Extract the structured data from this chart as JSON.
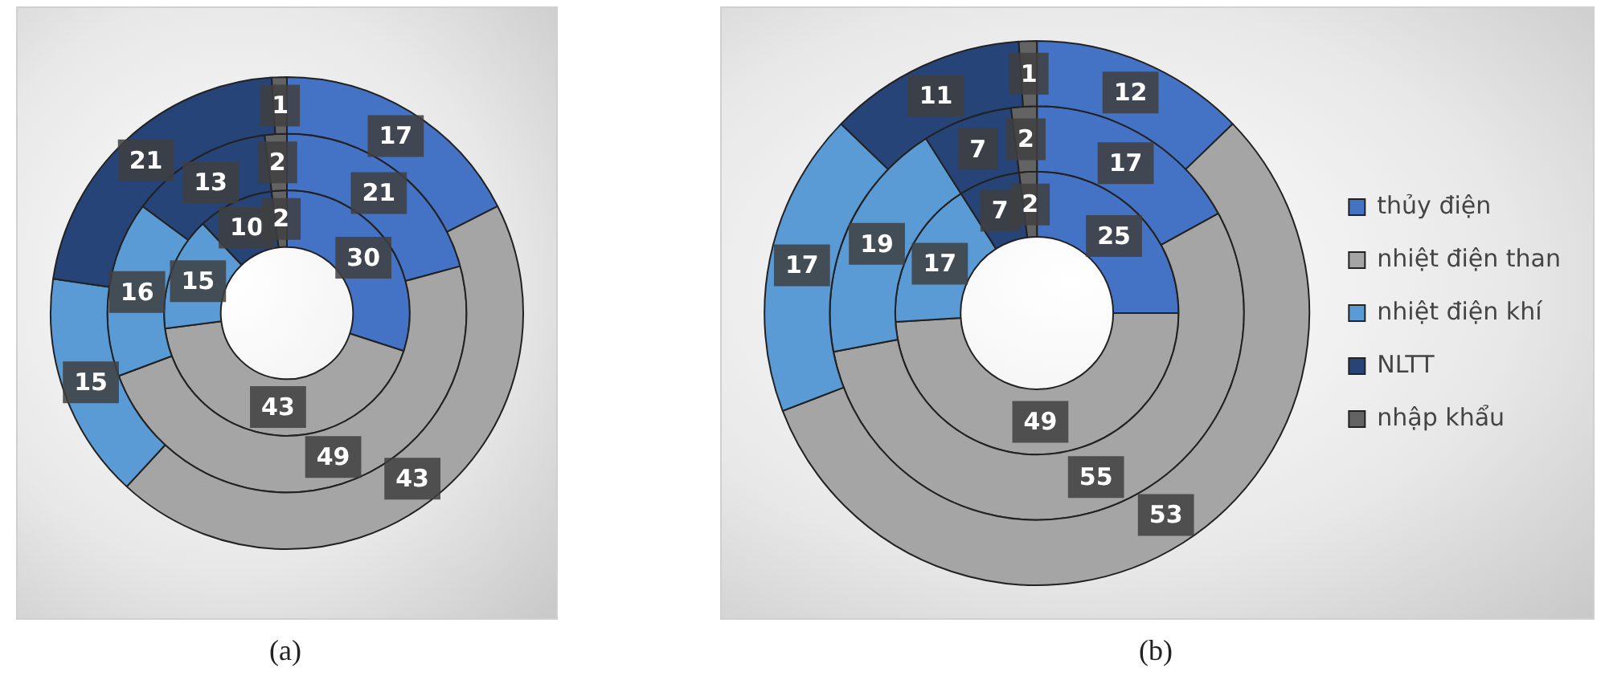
{
  "chart_data": [
    {
      "type": "donut",
      "categories": [
        null,
        null,
        null,
        null,
        null
      ],
      "colors": [
        "#4472c4",
        "#a5a5a5",
        "#5b9bd5",
        "#264478",
        "#636363"
      ],
      "series": [
        {
          "values": [
            17,
            43,
            15,
            21,
            1
          ]
        },
        {
          "values": [
            21,
            49,
            16,
            13,
            2
          ]
        },
        {
          "values": [
            30,
            43,
            15,
            10,
            2
          ]
        }
      ],
      "data_labels": true,
      "legend": false,
      "annotations": [
        "(a)"
      ]
    },
    {
      "type": "donut",
      "categories": [
        "thủy điện",
        "nhiệt điện than",
        "nhiệt điện khí",
        "NLTT",
        "nhập khẩu"
      ],
      "colors": [
        "#4472c4",
        "#a5a5a5",
        "#5b9bd5",
        "#264478",
        "#636363"
      ],
      "series": [
        {
          "values": [
            12,
            53,
            17,
            11,
            1
          ]
        },
        {
          "values": [
            17,
            55,
            19,
            7,
            2
          ]
        },
        {
          "values": [
            25,
            49,
            17,
            7,
            2
          ]
        }
      ],
      "data_labels": true,
      "legend": "right",
      "annotations": [
        "(b)"
      ]
    }
  ]
}
